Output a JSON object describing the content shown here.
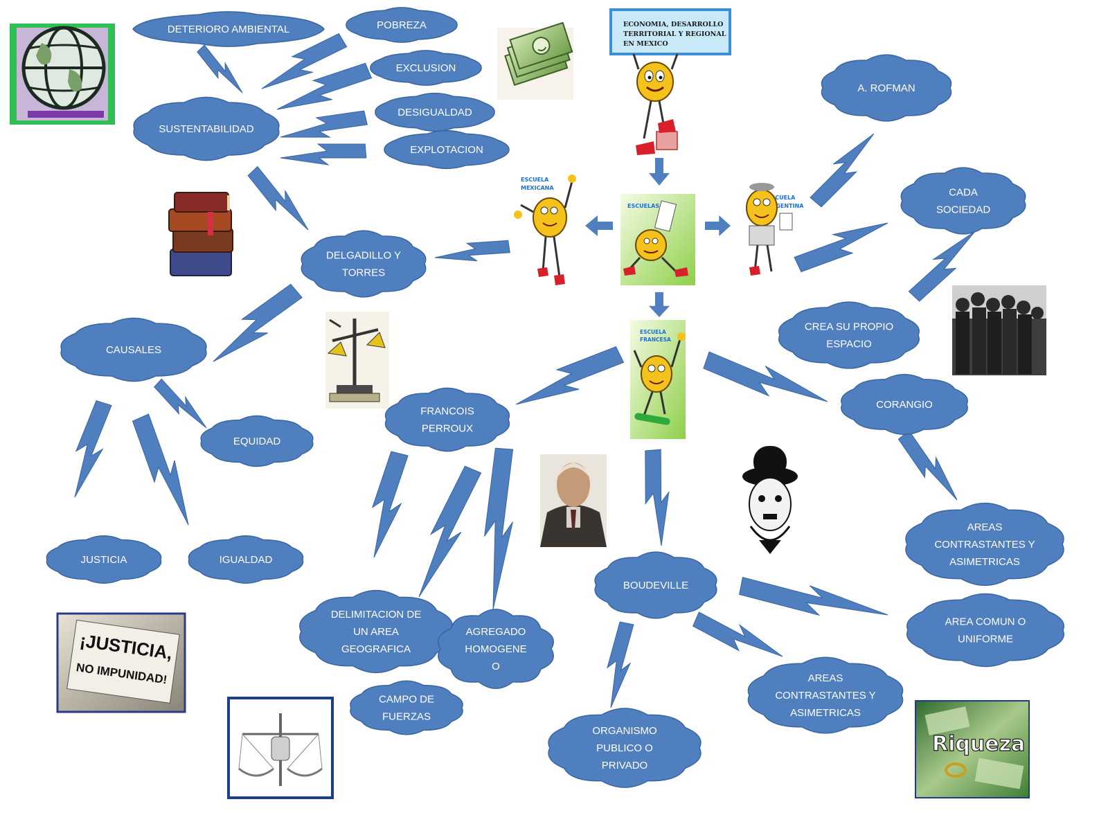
{
  "diagram": {
    "title_sign_lines": [
      "ECONOMIA, DESARROLLO",
      "TERRITORIAL Y REGIONAL",
      "EN MEXICO"
    ],
    "center_card_label": "ESCUELAS",
    "school_labels": {
      "mexicana": [
        "ESCUELA",
        "MEXICANA"
      ],
      "argentina": [
        "ESCUELA",
        "ARGENTINA"
      ],
      "francesa": [
        "ESCUELA",
        "FRANCESA"
      ]
    },
    "nodes": {
      "deterioro": [
        "DETERIORO AMBIENTAL"
      ],
      "pobreza": [
        "POBREZA"
      ],
      "exclusion": [
        "EXCLUSION"
      ],
      "desigualdad": [
        "DESIGUALDAD"
      ],
      "explotacion": [
        "EXPLOTACION"
      ],
      "sustentabilidad": [
        "SUSTENTABILIDAD"
      ],
      "delgadillo": [
        "DELGADILLO Y",
        "TORRES"
      ],
      "causales": [
        "CAUSALES"
      ],
      "equidad": [
        "EQUIDAD"
      ],
      "justicia": [
        "JUSTICIA"
      ],
      "igualdad": [
        "IGUALDAD"
      ],
      "francois": [
        "FRANCOIS",
        "PERROUX"
      ],
      "delimitacion": [
        "DELIMITACION DE",
        "UN AREA",
        "GEOGRAFICA"
      ],
      "agregado": [
        "AGREGADO",
        "HOMOGENE",
        "O"
      ],
      "campo": [
        "CAMPO DE",
        "FUERZAS"
      ],
      "boudeville": [
        "BOUDEVILLE"
      ],
      "organismo": [
        "ORGANISMO",
        "PUBLICO O",
        "PRIVADO"
      ],
      "areas_contrastantes_bottom": [
        "AREAS",
        "CONTRASTANTES Y",
        "ASIMETRICAS"
      ],
      "area_comun": [
        "AREA COMUN O",
        "UNIFORME"
      ],
      "areas_contrastantes_right": [
        "AREAS",
        "CONTRASTANTES Y",
        "ASIMETRICAS"
      ],
      "corangio": [
        "CORANGIO"
      ],
      "crea": [
        "CREA SU PROPIO",
        "ESPACIO"
      ],
      "cada": [
        "CADA",
        "SOCIEDAD"
      ],
      "rofman": [
        "A. ROFMAN"
      ]
    },
    "image_texts": {
      "justicia_sign": [
        "¡JUSTICIA,",
        "NO IMPUNIDAD!"
      ],
      "riqueza": "Riqueza"
    },
    "colors": {
      "cloud_fill": "#4f7fbf",
      "cloud_stroke": "#3a659f",
      "cloud_text": "#ffffff",
      "bolt_fill": "#4f7fbf",
      "arrow_fill": "#4f7fbf",
      "sign_border": "#3a8fd8",
      "character_body": "#f4c21a"
    },
    "icons": [
      "globe-icon",
      "money-icon",
      "books-icon",
      "scales-icon",
      "justice-sign-image",
      "protest-scales-icon",
      "portrait-photo",
      "chaplin-icon",
      "crowd-photo",
      "riqueza-money-image",
      "mascot-character"
    ]
  }
}
